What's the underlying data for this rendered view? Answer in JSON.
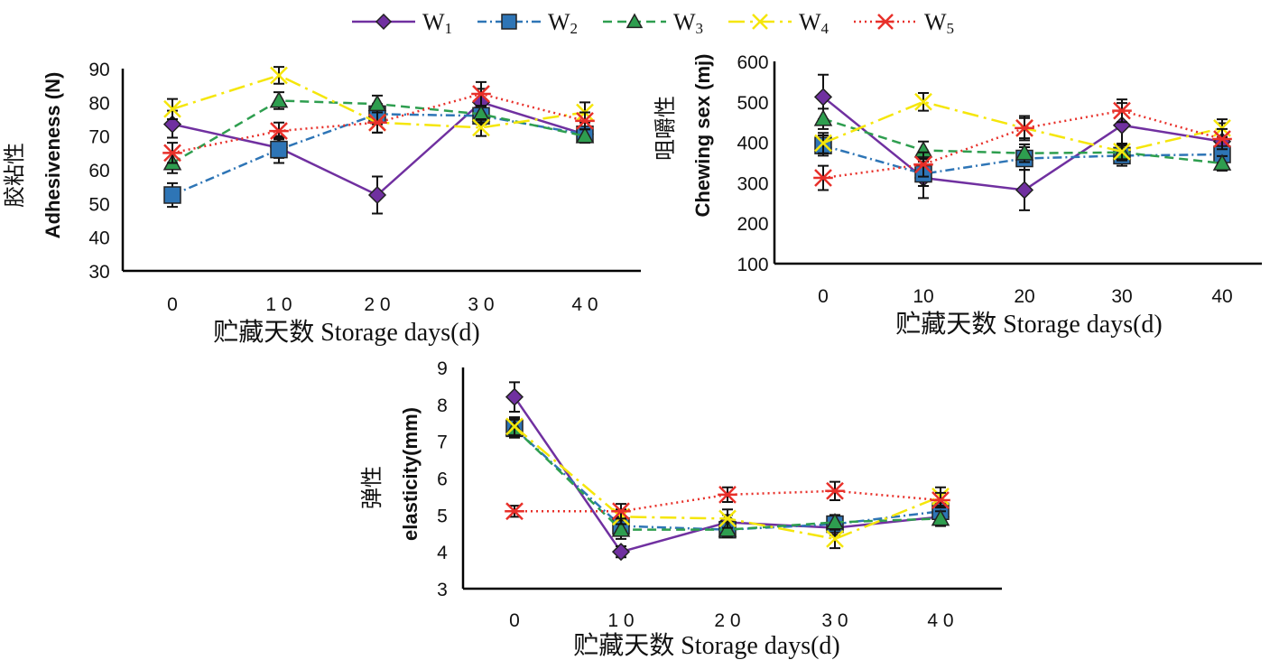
{
  "legend": [
    {
      "name": "W",
      "sub": "1",
      "color": "#7030a0",
      "marker": "diamond",
      "dash": "solid"
    },
    {
      "name": "W",
      "sub": "2",
      "color": "#2e75b6",
      "marker": "square",
      "dash": "dashdot"
    },
    {
      "name": "W",
      "sub": "3",
      "color": "#2e9e4f",
      "marker": "triangle",
      "dash": "dash"
    },
    {
      "name": "W",
      "sub": "4",
      "color": "#f5e60a",
      "marker": "x",
      "dash": "longdashdot"
    },
    {
      "name": "W",
      "sub": "5",
      "color": "#e8302a",
      "marker": "star",
      "dash": "dot"
    }
  ],
  "chart_data": [
    {
      "type": "line",
      "title": "",
      "ylabel_zh": "胶粘性",
      "ylabel": "Adhesiveness (N)",
      "xlabel": "贮藏天数 Storage days(d)",
      "categories": [
        "0",
        "1 0",
        "2 0",
        "3 0",
        "4 0"
      ],
      "ylim": [
        30,
        90
      ],
      "yticks": [
        30,
        40,
        50,
        60,
        70,
        80,
        90
      ],
      "series": [
        {
          "name": "W1",
          "values": [
            73.5,
            66.5,
            52.5,
            80,
            70.5
          ],
          "err": [
            4,
            3,
            5.5,
            4,
            2
          ]
        },
        {
          "name": "W2",
          "values": [
            52.5,
            66,
            76.5,
            76,
            70.5
          ],
          "err": [
            3.5,
            4,
            3,
            2.5,
            2
          ]
        },
        {
          "name": "W3",
          "values": [
            62,
            80.5,
            79.5,
            76.5,
            70
          ],
          "err": [
            3,
            2.5,
            2.5,
            2.5,
            2
          ]
        },
        {
          "name": "W4",
          "values": [
            78,
            88,
            74,
            72.5,
            77
          ],
          "err": [
            3,
            2.5,
            3,
            2.5,
            3
          ]
        },
        {
          "name": "W5",
          "values": [
            65,
            71.5,
            74,
            82.5,
            74.5
          ],
          "err": [
            3,
            2.5,
            3,
            3.5,
            2.5
          ]
        }
      ]
    },
    {
      "type": "line",
      "title": "",
      "ylabel_zh": "咀嚼性",
      "ylabel": "Chewing sex (mj)",
      "xlabel": "贮藏天数 Storage days(d)",
      "categories": [
        "0",
        "10",
        "20",
        "30",
        "40"
      ],
      "ylim": [
        100,
        600
      ],
      "yticks": [
        100,
        200,
        300,
        400,
        500,
        600
      ],
      "series": [
        {
          "name": "W1",
          "values": [
            512,
            312,
            282,
            442,
            402
          ],
          "err": [
            55,
            50,
            50,
            55,
            45
          ]
        },
        {
          "name": "W2",
          "values": [
            392,
            322,
            360,
            367,
            370
          ],
          "err": [
            25,
            30,
            28,
            25,
            20
          ]
        },
        {
          "name": "W3",
          "values": [
            458,
            380,
            373,
            375,
            348
          ],
          "err": [
            25,
            22,
            22,
            20,
            18
          ]
        },
        {
          "name": "W4",
          "values": [
            398,
            500,
            435,
            377,
            435
          ],
          "err": [
            25,
            22,
            25,
            20,
            22
          ]
        },
        {
          "name": "W5",
          "values": [
            312,
            345,
            435,
            478,
            408
          ],
          "err": [
            30,
            30,
            30,
            28,
            25
          ]
        }
      ]
    },
    {
      "type": "line",
      "title": "",
      "ylabel_zh": "弹性",
      "ylabel": "elasticity(mm)",
      "xlabel": "贮藏天数 Storage days(d)",
      "categories": [
        "0",
        "1 0",
        "2 0",
        "3 0",
        "4 0"
      ],
      "ylim": [
        3,
        9
      ],
      "yticks": [
        3,
        4,
        5,
        6,
        7,
        8,
        9
      ],
      "series": [
        {
          "name": "W1",
          "values": [
            8.2,
            4.0,
            4.8,
            4.65,
            4.95
          ],
          "err": [
            0.4,
            0.15,
            0.2,
            0.2,
            0.2
          ]
        },
        {
          "name": "W2",
          "values": [
            7.35,
            4.7,
            4.6,
            4.75,
            5.1
          ],
          "err": [
            0.25,
            0.25,
            0.2,
            0.2,
            0.2
          ]
        },
        {
          "name": "W3",
          "values": [
            7.35,
            4.6,
            4.6,
            4.8,
            4.9
          ],
          "err": [
            0.25,
            0.25,
            0.2,
            0.2,
            0.2
          ]
        },
        {
          "name": "W4",
          "values": [
            7.4,
            4.95,
            4.9,
            4.35,
            5.5
          ],
          "err": [
            0.25,
            0.2,
            0.25,
            0.25,
            0.25
          ]
        },
        {
          "name": "W5",
          "values": [
            5.1,
            5.1,
            5.55,
            5.65,
            5.4
          ],
          "err": [
            0.15,
            0.2,
            0.2,
            0.25,
            0.2
          ]
        }
      ]
    }
  ]
}
